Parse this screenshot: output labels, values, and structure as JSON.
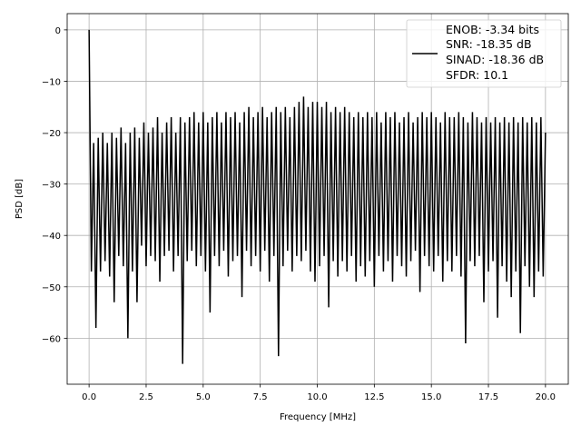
{
  "chart_data": {
    "type": "line",
    "title": "",
    "xlabel": "Frequency [MHz]",
    "ylabel": "PSD [dB]",
    "xlim": [
      -0.96,
      21.0
    ],
    "ylim": [
      -68.95,
      3.16
    ],
    "xticks": [
      0.0,
      2.5,
      5.0,
      7.5,
      10.0,
      12.5,
      15.0,
      17.5,
      20.0
    ],
    "xtick_labels": [
      "0.0",
      "2.5",
      "5.0",
      "7.5",
      "10.0",
      "12.5",
      "15.0",
      "17.5",
      "20.0"
    ],
    "yticks": [
      0,
      -10,
      -20,
      -30,
      -40,
      -50,
      -60
    ],
    "ytick_labels": [
      "0",
      "−10",
      "−20",
      "−30",
      "−40",
      "−50",
      "−60"
    ],
    "grid": true,
    "legend_position": "top-right",
    "legend_lines": [
      "ENOB: -3.34 bits",
      "SNR: -18.35 dB",
      "SINAD: -18.36 dB",
      "SFDR: 10.1"
    ],
    "line_color": "#000000",
    "x_start": 0.0,
    "x_step": 0.1,
    "series": [
      {
        "values": [
          0,
          -47,
          -22,
          -58,
          -21,
          -47,
          -20,
          -45,
          -22,
          -48,
          -20,
          -53,
          -21,
          -44,
          -19,
          -46,
          -22,
          -60,
          -20,
          -47,
          -19,
          -53,
          -21,
          -42,
          -18,
          -46,
          -20,
          -44,
          -19,
          -45,
          -17,
          -49,
          -20,
          -44,
          -18,
          -43,
          -17,
          -47,
          -20,
          -44,
          -17,
          -65,
          -18,
          -45,
          -17,
          -43,
          -16,
          -46,
          -18,
          -44,
          -16,
          -47,
          -18,
          -55,
          -17,
          -44,
          -16,
          -46,
          -18,
          -43,
          -16,
          -48,
          -17,
          -45,
          -16,
          -44,
          -18,
          -52,
          -16,
          -43,
          -15,
          -46,
          -17,
          -44,
          -16,
          -47,
          -15,
          -43,
          -17,
          -49,
          -16,
          -44,
          -15,
          -63.5,
          -16,
          -46,
          -15,
          -43,
          -17,
          -47,
          -15,
          -44,
          -14,
          -45,
          -13,
          -43,
          -15,
          -47,
          -14,
          -49,
          -14,
          -46,
          -15,
          -44,
          -14,
          -54,
          -16,
          -45,
          -15,
          -48,
          -16,
          -45,
          -15,
          -47,
          -16,
          -44,
          -17,
          -49,
          -16,
          -46,
          -17,
          -48,
          -16,
          -45,
          -17,
          -50,
          -16,
          -44,
          -18,
          -47,
          -16,
          -45,
          -17,
          -49,
          -16,
          -44,
          -18,
          -46,
          -17,
          -48,
          -16,
          -45,
          -18,
          -43,
          -17,
          -51,
          -16,
          -44,
          -17,
          -46,
          -16,
          -47,
          -17,
          -44,
          -18,
          -49,
          -16,
          -45,
          -17,
          -47,
          -17,
          -44,
          -16,
          -48,
          -17,
          -61,
          -18,
          -45,
          -16,
          -46,
          -17,
          -44,
          -18,
          -53,
          -17,
          -47,
          -18,
          -45,
          -17,
          -56,
          -18,
          -46,
          -17,
          -49,
          -18,
          -52,
          -17,
          -47,
          -18,
          -59,
          -17,
          -46,
          -18,
          -50,
          -17,
          -52,
          -18,
          -47,
          -17,
          -48,
          -20
        ]
      }
    ]
  }
}
